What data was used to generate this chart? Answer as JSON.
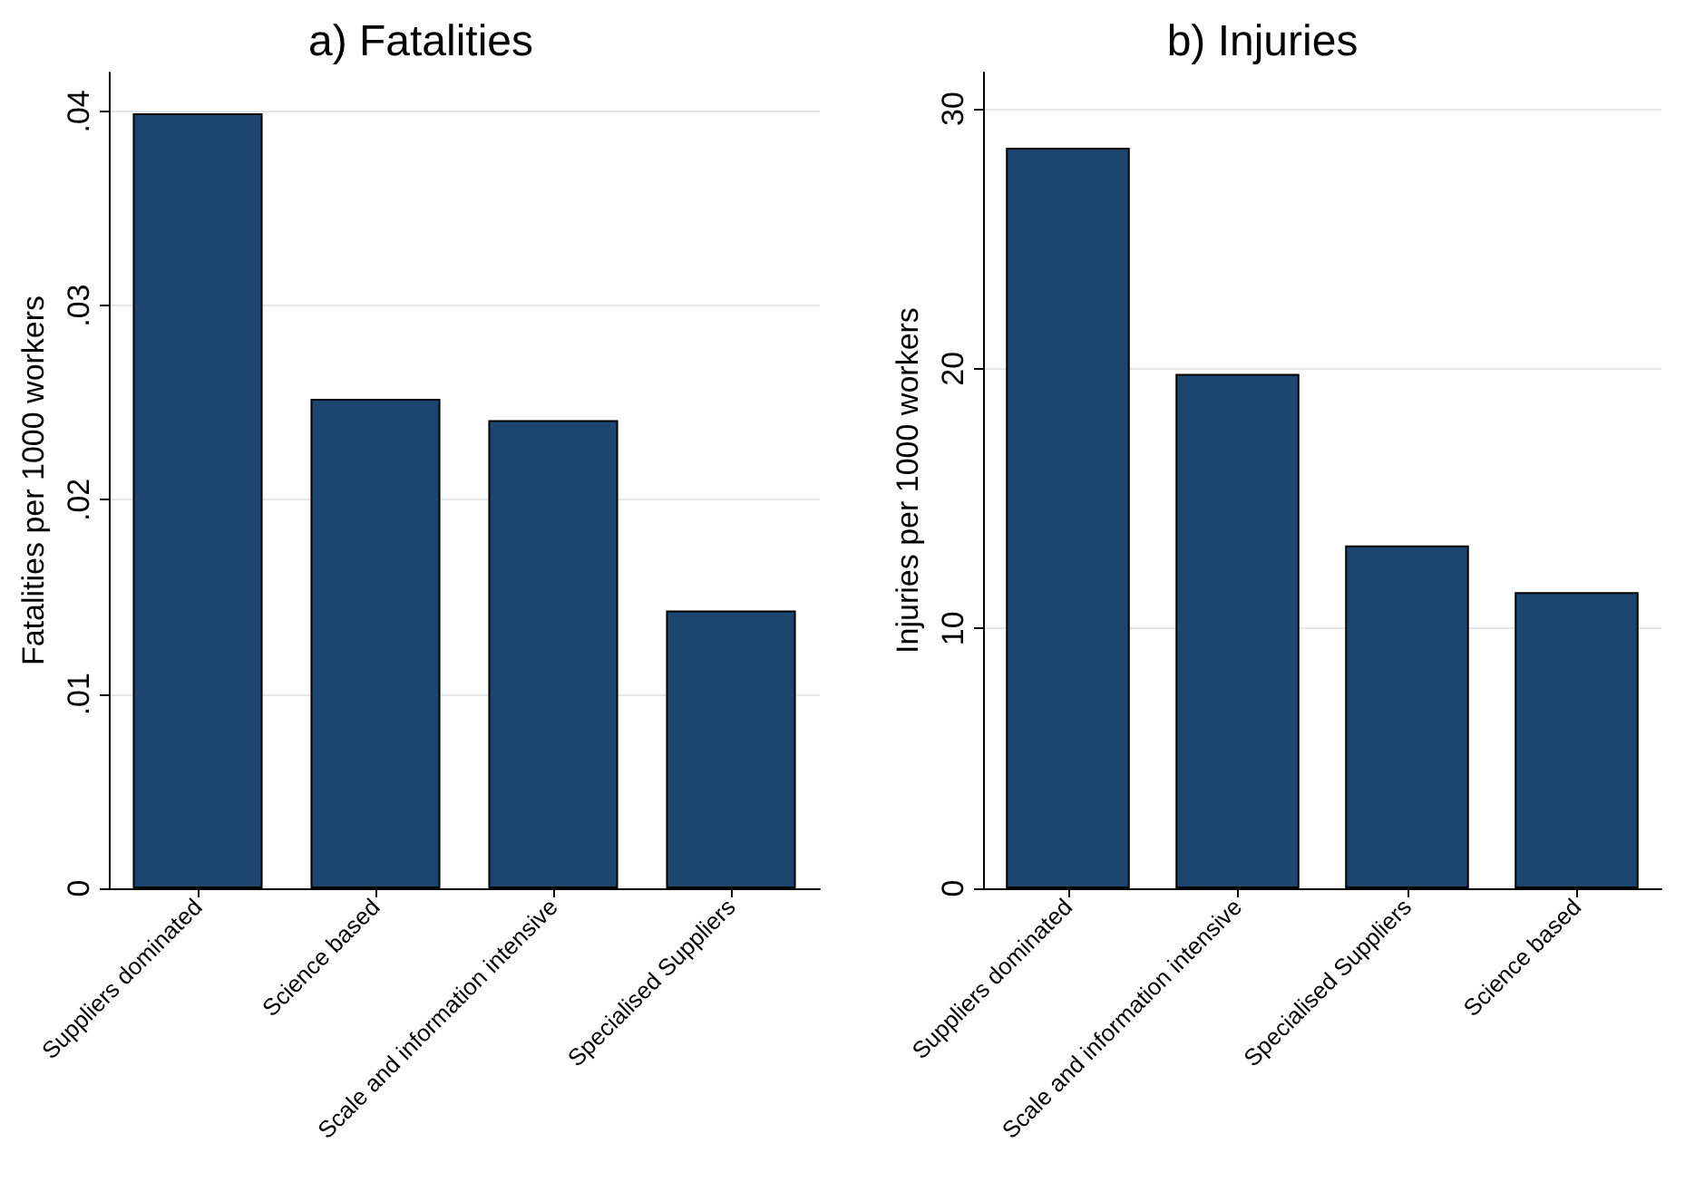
{
  "chart_data": [
    {
      "type": "bar",
      "title": "a) Fatalities",
      "ylabel": "Fatalities per 1000 workers",
      "categories": [
        "Suppliers dominated",
        "Science based",
        "Scale and information intensive",
        "Specialised Suppliers"
      ],
      "values": [
        0.0399,
        0.0252,
        0.0241,
        0.0143
      ],
      "color": "#1c4670",
      "ylim": [
        0,
        0.042
      ],
      "yticks": [
        {
          "value": 0,
          "label": "0"
        },
        {
          "value": 0.01,
          "label": ".01"
        },
        {
          "value": 0.02,
          "label": ".02"
        },
        {
          "value": 0.03,
          "label": ".03"
        },
        {
          "value": 0.04,
          "label": ".04"
        }
      ],
      "grid": "y"
    },
    {
      "type": "bar",
      "title": "b) Injuries",
      "ylabel": "Injuries per 1000 workers",
      "categories": [
        "Suppliers dominated",
        "Scale and information intensive",
        "Specialised Suppliers",
        "Science based"
      ],
      "values": [
        28.5,
        19.8,
        13.2,
        11.4
      ],
      "color": "#1c4670",
      "ylim": [
        0,
        31.4
      ],
      "yticks": [
        0,
        10,
        20,
        30
      ],
      "grid": "y"
    }
  ]
}
